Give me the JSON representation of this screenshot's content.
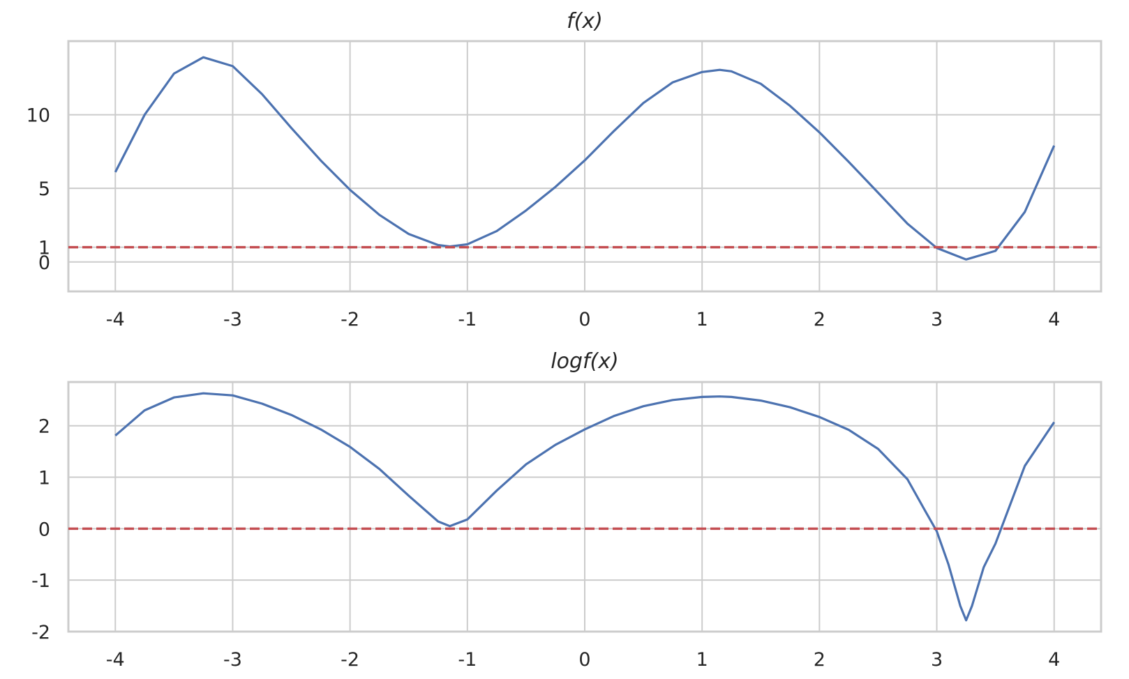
{
  "chart_data": [
    {
      "type": "line",
      "title": "f(x)",
      "xlabel": "",
      "ylabel": "",
      "xlim": [
        -4.4,
        4.4
      ],
      "ylim": [
        -2,
        15
      ],
      "xticks": [
        -4,
        -3,
        -2,
        -1,
        0,
        1,
        2,
        3,
        4
      ],
      "xtick_labels": [
        "-4",
        "-3",
        "-2",
        "-1",
        "0",
        "1",
        "2",
        "3",
        "4"
      ],
      "yticks": [
        0,
        1,
        5,
        10
      ],
      "ytick_labels": [
        "0",
        "1",
        "5",
        "10"
      ],
      "grid": true,
      "series": [
        {
          "color": "#4c72b0",
          "style": "solid",
          "x": [
            -4.0,
            -3.75,
            -3.5,
            -3.25,
            -3.0,
            -2.75,
            -2.5,
            -2.25,
            -2.0,
            -1.75,
            -1.5,
            -1.25,
            -1.15,
            -1.0,
            -0.75,
            -0.5,
            -0.25,
            0.0,
            0.25,
            0.5,
            0.75,
            1.0,
            1.15,
            1.25,
            1.5,
            1.75,
            2.0,
            2.25,
            2.5,
            2.75,
            3.0,
            3.25,
            3.5,
            3.75,
            4.0
          ],
          "values": [
            6.1,
            10.0,
            12.8,
            13.9,
            13.3,
            11.4,
            9.1,
            6.9,
            4.9,
            3.2,
            1.9,
            1.15,
            1.05,
            1.2,
            2.1,
            3.5,
            5.1,
            6.9,
            8.9,
            10.8,
            12.2,
            12.9,
            13.05,
            12.95,
            12.1,
            10.6,
            8.8,
            6.8,
            4.7,
            2.6,
            0.95,
            0.17,
            0.75,
            3.4,
            7.9
          ]
        },
        {
          "color": "#c44e52",
          "style": "dashed",
          "x": [
            -4.4,
            4.4
          ],
          "values": [
            1,
            1
          ]
        }
      ]
    },
    {
      "type": "line",
      "title": "logf(x)",
      "xlabel": "",
      "ylabel": "",
      "xlim": [
        -4.4,
        4.4
      ],
      "ylim": [
        -2,
        2.85
      ],
      "xticks": [
        -4,
        -3,
        -2,
        -1,
        0,
        1,
        2,
        3,
        4
      ],
      "xtick_labels": [
        "-4",
        "-3",
        "-2",
        "-1",
        "0",
        "1",
        "2",
        "3",
        "4"
      ],
      "yticks": [
        -2,
        -1,
        0,
        1,
        2
      ],
      "ytick_labels": [
        "-2",
        "-1",
        "0",
        "1",
        "2"
      ],
      "grid": true,
      "series": [
        {
          "color": "#4c72b0",
          "style": "solid",
          "x": [
            -4.0,
            -3.75,
            -3.5,
            -3.25,
            -3.0,
            -2.75,
            -2.5,
            -2.25,
            -2.0,
            -1.75,
            -1.5,
            -1.25,
            -1.15,
            -1.0,
            -0.75,
            -0.5,
            -0.25,
            0.0,
            0.25,
            0.5,
            0.75,
            1.0,
            1.15,
            1.25,
            1.5,
            1.75,
            2.0,
            2.25,
            2.5,
            2.75,
            2.9,
            3.0,
            3.1,
            3.2,
            3.25,
            3.3,
            3.4,
            3.5,
            3.75,
            4.0
          ],
          "values": [
            1.81,
            2.3,
            2.55,
            2.63,
            2.59,
            2.43,
            2.21,
            1.93,
            1.59,
            1.16,
            0.64,
            0.14,
            0.05,
            0.18,
            0.74,
            1.25,
            1.63,
            1.93,
            2.19,
            2.38,
            2.5,
            2.56,
            2.57,
            2.56,
            2.49,
            2.36,
            2.17,
            1.92,
            1.55,
            0.96,
            0.35,
            -0.05,
            -0.7,
            -1.5,
            -1.78,
            -1.5,
            -0.75,
            -0.29,
            1.22,
            2.07
          ]
        },
        {
          "color": "#c44e52",
          "style": "dashed",
          "x": [
            -4.4,
            4.4
          ],
          "values": [
            0,
            0
          ]
        }
      ]
    }
  ]
}
